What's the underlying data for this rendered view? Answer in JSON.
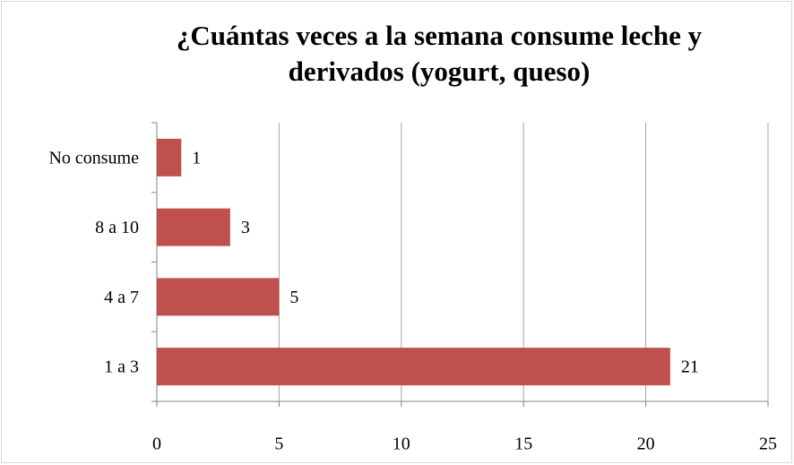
{
  "chart_data": {
    "type": "bar",
    "orientation": "horizontal",
    "title": "¿Cuántas veces a la semana consume leche y derivados (yogurt, queso)",
    "categories": [
      "No consume",
      "8 a 10",
      "4 a 7",
      "1 a 3"
    ],
    "values": [
      1,
      3,
      5,
      21
    ],
    "color": "#c0504d",
    "xlim": [
      0,
      25
    ],
    "xticks": [
      0,
      5,
      10,
      15,
      20,
      25
    ],
    "grid": true
  }
}
